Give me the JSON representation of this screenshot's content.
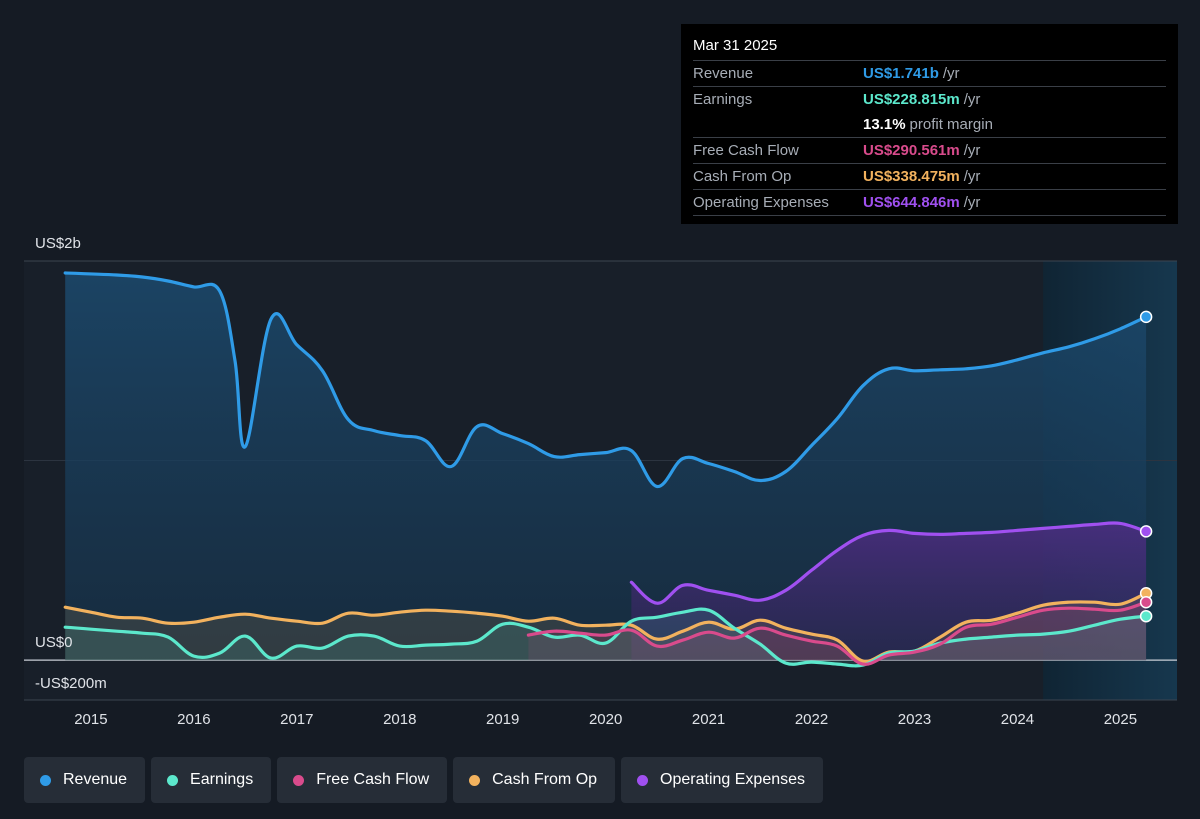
{
  "tooltip": {
    "date": "Mar 31 2025",
    "rows": [
      {
        "label": "Revenue",
        "value": "US$1.741b",
        "unit": "/yr",
        "color": "#2f9be7"
      },
      {
        "label": "Earnings",
        "value": "US$228.815m",
        "unit": "/yr",
        "color": "#5ce8cc"
      },
      {
        "label": "",
        "value": "13.1%",
        "unit": "profit margin",
        "color": "#ffffff"
      },
      {
        "label": "Free Cash Flow",
        "value": "US$290.561m",
        "unit": "/yr",
        "color": "#d94b8c"
      },
      {
        "label": "Cash From Op",
        "value": "US$338.475m",
        "unit": "/yr",
        "color": "#f2b25e"
      },
      {
        "label": "Operating Expenses",
        "value": "US$644.846m",
        "unit": "/yr",
        "color": "#a050f0"
      }
    ]
  },
  "legend": [
    {
      "label": "Revenue",
      "color": "#2f9be7"
    },
    {
      "label": "Earnings",
      "color": "#5ce8cc"
    },
    {
      "label": "Free Cash Flow",
      "color": "#d94b8c"
    },
    {
      "label": "Cash From Op",
      "color": "#f2b25e"
    },
    {
      "label": "Operating Expenses",
      "color": "#a050f0"
    }
  ],
  "chart_data": {
    "type": "area",
    "title": "",
    "xlabel": "",
    "ylabel": "",
    "y_tick_labels": [
      "US$2b",
      "US$0",
      "-US$200m"
    ],
    "x_tick_labels": [
      "2015",
      "2016",
      "2017",
      "2018",
      "2019",
      "2020",
      "2021",
      "2022",
      "2023",
      "2024",
      "2025"
    ],
    "xlim": [
      2014.35,
      2025.55
    ],
    "ylim": [
      -400,
      4000
    ],
    "grid": true,
    "legend_position": "bottom",
    "highlight_from": 2024.25,
    "series": [
      {
        "name": "Revenue",
        "color": "#2f9be7",
        "x": [
          2014.75,
          2015.25,
          2015.5,
          2015.75,
          2016.0,
          2016.25,
          2016.4,
          2016.5,
          2016.75,
          2017.0,
          2017.25,
          2017.5,
          2017.75,
          2018.0,
          2018.25,
          2018.5,
          2018.75,
          2019.0,
          2019.25,
          2019.5,
          2019.75,
          2020.0,
          2020.25,
          2020.5,
          2020.75,
          2021.0,
          2021.25,
          2021.5,
          2021.75,
          2022.0,
          2022.25,
          2022.5,
          2022.75,
          2023.0,
          2023.25,
          2023.5,
          2023.75,
          2024.0,
          2024.25,
          2024.5,
          2024.75,
          2025.0,
          2025.25
        ],
        "values": [
          3880,
          3860,
          3840,
          3800,
          3740,
          3700,
          3000,
          2140,
          3420,
          3160,
          2900,
          2410,
          2300,
          2250,
          2200,
          1940,
          2340,
          2270,
          2170,
          2040,
          2060,
          2080,
          2100,
          1740,
          2020,
          1970,
          1890,
          1800,
          1890,
          2150,
          2420,
          2750,
          2920,
          2900,
          2910,
          2920,
          2950,
          3010,
          3080,
          3140,
          3220,
          3320,
          3440
        ]
      },
      {
        "name": "Earnings",
        "color": "#5ce8cc",
        "x": [
          2014.75,
          2015.0,
          2015.25,
          2015.5,
          2015.75,
          2016.0,
          2016.25,
          2016.5,
          2016.75,
          2017.0,
          2017.25,
          2017.5,
          2017.75,
          2018.0,
          2018.25,
          2018.5,
          2018.75,
          2019.0,
          2019.25,
          2019.5,
          2019.75,
          2020.0,
          2020.25,
          2020.5,
          2020.75,
          2021.0,
          2021.25,
          2021.5,
          2021.75,
          2022.0,
          2022.25,
          2022.5,
          2022.75,
          2023.0,
          2023.25,
          2023.5,
          2023.75,
          2024.0,
          2024.25,
          2024.5,
          2024.75,
          2025.0,
          2025.25
        ],
        "values": [
          330,
          310,
          290,
          270,
          230,
          40,
          70,
          240,
          20,
          140,
          120,
          240,
          240,
          140,
          150,
          160,
          190,
          360,
          330,
          230,
          250,
          170,
          390,
          430,
          480,
          500,
          320,
          160,
          -30,
          -20,
          -40,
          -50,
          70,
          90,
          170,
          210,
          230,
          250,
          260,
          290,
          350,
          410,
          440
        ]
      },
      {
        "name": "Free Cash Flow",
        "color": "#d94b8c",
        "x": [
          2019.25,
          2019.5,
          2019.75,
          2020.0,
          2020.25,
          2020.5,
          2020.75,
          2021.0,
          2021.25,
          2021.5,
          2021.75,
          2022.0,
          2022.25,
          2022.5,
          2022.75,
          2023.0,
          2023.25,
          2023.5,
          2023.75,
          2024.0,
          2024.25,
          2024.5,
          2024.75,
          2025.0,
          2025.25
        ],
        "values": [
          250,
          290,
          270,
          250,
          300,
          140,
          200,
          280,
          220,
          320,
          250,
          190,
          140,
          -40,
          50,
          80,
          160,
          330,
          360,
          430,
          500,
          520,
          510,
          500,
          580
        ]
      },
      {
        "name": "Cash From Op",
        "color": "#f2b25e",
        "x": [
          2014.75,
          2015.0,
          2015.25,
          2015.5,
          2015.75,
          2016.0,
          2016.25,
          2016.5,
          2016.75,
          2017.0,
          2017.25,
          2017.5,
          2017.75,
          2018.0,
          2018.25,
          2018.5,
          2018.75,
          2019.0,
          2019.25,
          2019.5,
          2019.75,
          2020.0,
          2020.25,
          2020.5,
          2020.75,
          2021.0,
          2021.25,
          2021.5,
          2021.75,
          2022.0,
          2022.25,
          2022.5,
          2022.75,
          2023.0,
          2023.25,
          2023.5,
          2023.75,
          2024.0,
          2024.25,
          2024.5,
          2024.75,
          2025.0,
          2025.25
        ],
        "values": [
          530,
          480,
          430,
          420,
          370,
          380,
          430,
          460,
          420,
          390,
          370,
          470,
          450,
          480,
          500,
          490,
          470,
          440,
          390,
          420,
          350,
          350,
          350,
          210,
          290,
          380,
          310,
          400,
          320,
          260,
          200,
          -10,
          80,
          90,
          230,
          380,
          400,
          470,
          550,
          580,
          580,
          560,
          670
        ]
      },
      {
        "name": "Operating Expenses",
        "color": "#a050f0",
        "x": [
          2020.25,
          2020.5,
          2020.75,
          2021.0,
          2021.25,
          2021.5,
          2021.75,
          2022.0,
          2022.25,
          2022.5,
          2022.75,
          2023.0,
          2023.25,
          2023.5,
          2023.75,
          2024.0,
          2024.25,
          2024.5,
          2024.75,
          2025.0,
          2025.25
        ],
        "values": [
          780,
          570,
          750,
          700,
          650,
          600,
          700,
          900,
          1100,
          1250,
          1300,
          1270,
          1260,
          1270,
          1280,
          1300,
          1320,
          1340,
          1360,
          1370,
          1290
        ]
      }
    ]
  }
}
